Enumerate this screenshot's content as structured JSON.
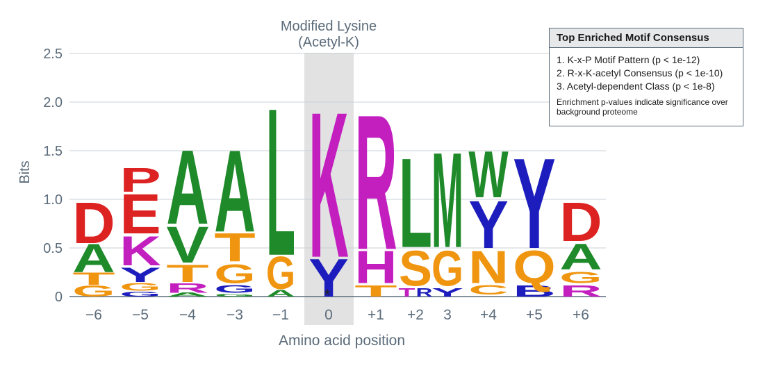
{
  "chart_data": {
    "type": "sequence-logo",
    "title": "Modified Lysine",
    "subtitle": "(Acetyl-K)",
    "xlabel": "Amino acid position",
    "ylabel": "Bits",
    "ylim": [
      0,
      2.5
    ],
    "yticks": [
      "0",
      "0.5",
      "1.0",
      "1.5",
      "2.0",
      "2.5"
    ],
    "ytick_values": [
      0,
      0.5,
      1.0,
      1.5,
      2.0,
      2.5
    ],
    "grid": true,
    "highlight_position": "0",
    "highlight_marker": "*",
    "positions": [
      {
        "label": "−6",
        "stack": [
          {
            "letter": "G",
            "from": 0.0,
            "to": 0.12
          },
          {
            "letter": "T",
            "from": 0.12,
            "to": 0.25
          },
          {
            "letter": "A",
            "from": 0.25,
            "to": 0.55
          },
          {
            "letter": "D",
            "from": 0.55,
            "to": 0.98
          }
        ]
      },
      {
        "label": "−5",
        "stack": [
          {
            "letter": "G",
            "from": 0.0,
            "to": 0.05
          },
          {
            "letter": "G",
            "from": 0.06,
            "to": 0.14
          },
          {
            "letter": "Y",
            "from": 0.15,
            "to": 0.3
          },
          {
            "letter": "K",
            "from": 0.32,
            "to": 0.63
          },
          {
            "letter": "E",
            "from": 0.65,
            "to": 1.07
          },
          {
            "letter": "P",
            "from": 1.08,
            "to": 1.33
          }
        ]
      },
      {
        "label": "−4",
        "stack": [
          {
            "letter": "A",
            "from": 0.0,
            "to": 0.04
          },
          {
            "letter": "R",
            "from": 0.04,
            "to": 0.14
          },
          {
            "letter": "T",
            "from": 0.15,
            "to": 0.33
          },
          {
            "letter": "V",
            "from": 0.35,
            "to": 0.73
          },
          {
            "letter": "A",
            "from": 0.75,
            "to": 1.53
          }
        ]
      },
      {
        "label": "−3",
        "stack": [
          {
            "letter": "G",
            "from": 0.0,
            "to": 0.03
          },
          {
            "letter": "G",
            "from": 0.04,
            "to": 0.12
          },
          {
            "letter": "G",
            "from": 0.14,
            "to": 0.34
          },
          {
            "letter": "T",
            "from": 0.36,
            "to": 0.66
          },
          {
            "letter": "A",
            "from": 0.67,
            "to": 1.53
          }
        ]
      },
      {
        "label": "−1",
        "stack": [
          {
            "letter": "A",
            "from": 0.0,
            "to": 0.07
          },
          {
            "letter": "G",
            "from": 0.08,
            "to": 0.42
          },
          {
            "letter": "L",
            "from": 0.43,
            "to": 1.98
          }
        ]
      },
      {
        "label": "0",
        "stack": [
          {
            "letter": "Y",
            "from": 0.0,
            "to": 0.4
          },
          {
            "letter": "K",
            "from": 0.41,
            "to": 1.94
          }
        ]
      },
      {
        "label": "+1",
        "stack": [
          {
            "letter": "T",
            "from": 0.0,
            "to": 0.12
          },
          {
            "letter": "H",
            "from": 0.14,
            "to": 0.48
          },
          {
            "letter": "R",
            "from": 0.49,
            "to": 1.91
          }
        ]
      },
      {
        "label": "+2",
        "stack": [
          {
            "letter": "T",
            "from": 0.0,
            "to": 0.09
          },
          {
            "letter": "R",
            "from": 0.0,
            "to": 0.09
          },
          {
            "letter": "S",
            "from": 0.11,
            "to": 0.48
          },
          {
            "letter": "L",
            "from": 0.51,
            "to": 1.45
          }
        ]
      },
      {
        "label": "3",
        "stack": [
          {
            "letter": "Y",
            "from": 0.0,
            "to": 0.09
          },
          {
            "letter": "G",
            "from": 0.11,
            "to": 0.48
          },
          {
            "letter": "M",
            "from": 0.51,
            "to": 1.51
          }
        ]
      },
      {
        "label": "+4",
        "stack": [
          {
            "letter": "C",
            "from": 0.02,
            "to": 0.12
          },
          {
            "letter": "N",
            "from": 0.14,
            "to": 0.48
          },
          {
            "letter": "Y",
            "from": 0.5,
            "to": 1.0
          },
          {
            "letter": "W",
            "from": 1.02,
            "to": 1.51
          }
        ]
      },
      {
        "label": "+5",
        "stack": [
          {
            "letter": "B",
            "from": 0.0,
            "to": 0.12
          },
          {
            "letter": "Q",
            "from": 0.14,
            "to": 0.48
          },
          {
            "letter": "Y",
            "from": 0.5,
            "to": 1.45
          }
        ]
      },
      {
        "label": "+6",
        "stack": [
          {
            "letter": "R",
            "from": 0.0,
            "to": 0.12
          },
          {
            "letter": "G",
            "from": 0.14,
            "to": 0.26
          },
          {
            "letter": "A",
            "from": 0.28,
            "to": 0.55
          },
          {
            "letter": "D",
            "from": 0.57,
            "to": 0.98
          }
        ]
      }
    ],
    "letter_colors": {
      "A": "#1f8a2a",
      "G": "#f0950f",
      "T": "#f0950f",
      "S": "#f0950f",
      "C": "#f0950f",
      "N": "#f0950f",
      "Q": "#f0950f",
      "D": "#dd2222",
      "E": "#dd2222",
      "P": "#dd2222",
      "K": "#c31fbf",
      "R": "#c31fbf",
      "H": "#c31fbf",
      "Y": "#1d1dbd",
      "W": "#1f8a2a",
      "V": "#1f8a2a",
      "L": "#1f8a2a",
      "M": "#1f8a2a",
      "B": "#1d1dbd"
    },
    "overrides": {
      "-5.G.0": "#1d1dbd",
      "-4.R": "#c31fbf",
      "-3.G.0": "#1f8a2a",
      "-3.G.1": "#1d1dbd",
      "+2.T": "#c31fbf",
      "+2.R": "#1d1dbd",
      "3.Y": "#1d1dbd",
      "+4.W": "#1f8a2a",
      "+6.R": "#c31fbf",
      "+6.G": "#f0950f"
    }
  },
  "legend": {
    "title": "Top Enriched Motif Consensus",
    "items": [
      "1. K-x-P Motif Pattern (p < 1e-12)",
      "2. R-x-K-acetyl Consensus (p < 1e-10)",
      "3. Acetyl-dependent Class (p < 1e-8)"
    ],
    "note": "Enrichment p-values indicate significance over background proteome"
  },
  "colors": {
    "axis": "#5b6b7a",
    "grid": "#c8d0d6",
    "highlight": "#e2e2e2"
  }
}
